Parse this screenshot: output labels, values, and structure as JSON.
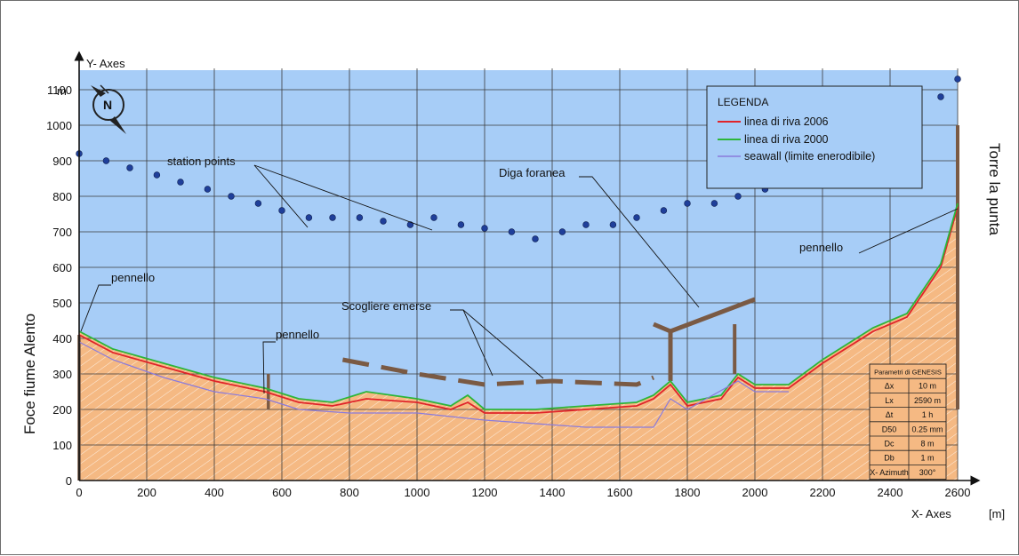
{
  "chart_data": {
    "type": "scatter",
    "xlabel": "X- Axes",
    "ylabel": "Y- Axes",
    "x_unit": "[m]",
    "y_unit": "m",
    "xlim": [
      0,
      2600
    ],
    "ylim": [
      0,
      1100
    ],
    "x_ticks": [
      0,
      200,
      400,
      600,
      800,
      1000,
      1200,
      1400,
      1600,
      1800,
      2000,
      2200,
      2400,
      2600
    ],
    "y_ticks": [
      0,
      100,
      200,
      300,
      400,
      500,
      600,
      700,
      800,
      900,
      1000,
      1100
    ],
    "grid": true,
    "left_label": "Foce fiume Alento",
    "right_label": "Torre la punta",
    "compass_letter": "N",
    "legend": {
      "title": "LEGENDA",
      "placement": "top-right",
      "entries": [
        {
          "label": "linea di riva 2006",
          "color": "#e0242a"
        },
        {
          "label": "linea di riva 2000",
          "color": "#2db53a"
        },
        {
          "label": "seawall (limite enerodibile)",
          "color": "#8a7bdc"
        }
      ]
    },
    "annotations": {
      "station_points": "station points",
      "diga_foranea": "Diga foranea",
      "scogliere_emerse": "Scogliere emerse",
      "pennello_left": "pennello",
      "pennello_mid": "pennello",
      "pennello_right": "pennello"
    },
    "genesis_table": {
      "title": "Parametri di GENESIS",
      "rows": [
        [
          "Δx",
          "10 m"
        ],
        [
          "Lx",
          "2590 m"
        ],
        [
          "Δt",
          "1 h"
        ],
        [
          "D50",
          "0.25 mm"
        ],
        [
          "Dc",
          "8 m"
        ],
        [
          "Db",
          "1 m"
        ],
        [
          "X- Azimuth",
          "300°"
        ]
      ]
    },
    "series": [
      {
        "name": "station points",
        "x": [
          0,
          80,
          150,
          230,
          300,
          380,
          450,
          530,
          600,
          680,
          750,
          830,
          900,
          980,
          1050,
          1130,
          1200,
          1280,
          1350,
          1430,
          1500,
          1580,
          1650,
          1730,
          1800,
          1880,
          1950,
          2030,
          2100,
          2180,
          2250,
          2330,
          2400,
          2480,
          2550,
          2600
        ],
        "y": [
          920,
          900,
          880,
          860,
          840,
          820,
          800,
          780,
          760,
          740,
          740,
          740,
          730,
          720,
          740,
          720,
          710,
          700,
          680,
          700,
          720,
          720,
          740,
          760,
          780,
          780,
          800,
          820,
          840,
          840,
          860,
          900,
          940,
          1000,
          1080,
          1130
        ]
      },
      {
        "name": "linea di riva 2006",
        "x": [
          0,
          100,
          250,
          400,
          550,
          650,
          750,
          850,
          1000,
          1100,
          1150,
          1200,
          1350,
          1500,
          1650,
          1700,
          1750,
          1800,
          1900,
          1950,
          2000,
          2100,
          2200,
          2350,
          2450,
          2550,
          2600
        ],
        "y": [
          410,
          360,
          320,
          280,
          250,
          220,
          210,
          230,
          220,
          200,
          220,
          190,
          190,
          200,
          210,
          230,
          270,
          210,
          230,
          290,
          260,
          260,
          330,
          420,
          460,
          600,
          770
        ]
      },
      {
        "name": "linea di riva 2000",
        "x": [
          0,
          100,
          250,
          400,
          550,
          650,
          750,
          850,
          1000,
          1100,
          1150,
          1200,
          1350,
          1500,
          1650,
          1700,
          1750,
          1800,
          1900,
          1950,
          2000,
          2100,
          2200,
          2350,
          2450,
          2550,
          2600
        ],
        "y": [
          420,
          370,
          330,
          290,
          260,
          230,
          220,
          250,
          230,
          210,
          240,
          200,
          200,
          210,
          220,
          240,
          280,
          220,
          240,
          300,
          270,
          270,
          340,
          430,
          470,
          610,
          780
        ]
      },
      {
        "name": "seawall (limite enerodibile)",
        "x": [
          0,
          100,
          250,
          400,
          550,
          650,
          800,
          1000,
          1100,
          1200,
          1350,
          1500,
          1700,
          1750,
          1800,
          1950,
          2000,
          2100
        ],
        "y": [
          390,
          340,
          290,
          250,
          230,
          200,
          190,
          190,
          180,
          170,
          160,
          150,
          150,
          230,
          200,
          280,
          250,
          250
        ]
      }
    ]
  }
}
